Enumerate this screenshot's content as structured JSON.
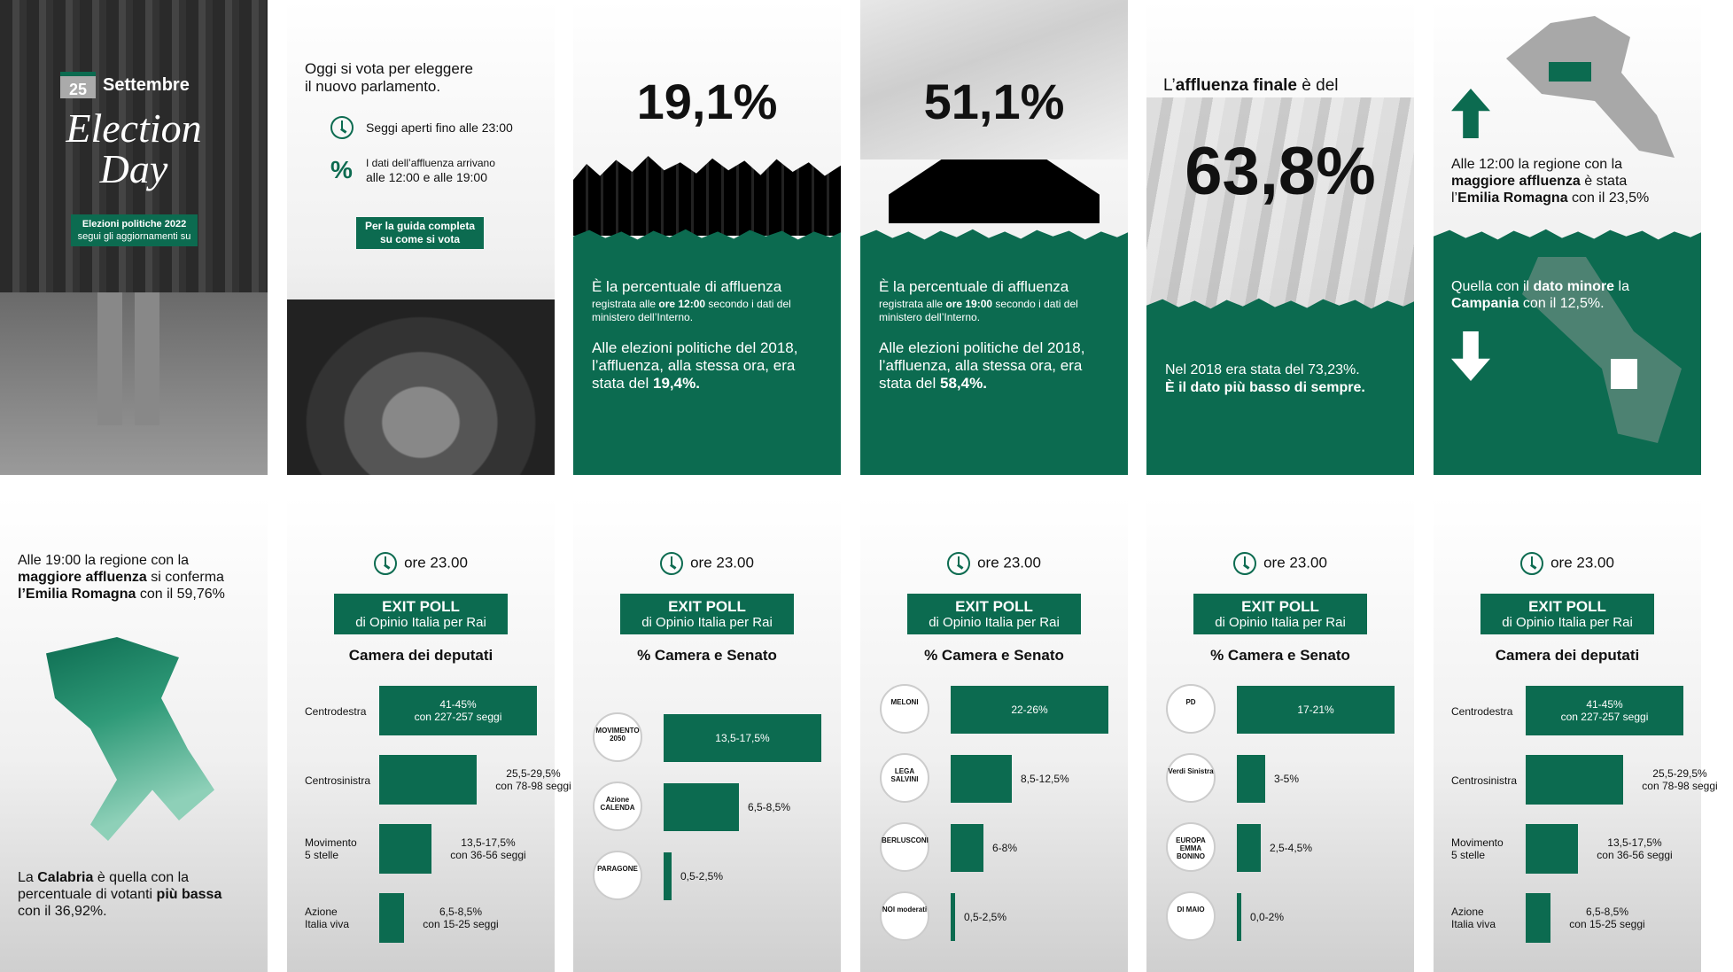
{
  "colors": {
    "accent": "#0c6b50",
    "background": "#ffffff",
    "text": "#111111"
  },
  "s1": {
    "day": "25",
    "month": "Settembre",
    "title1": "Election",
    "title2": "Day",
    "box1": "Elezioni politiche 2022",
    "box2": "segui gli aggiornamenti su",
    "icon": "calendar-icon"
  },
  "s2": {
    "line1": "Oggi si vota per eleggere",
    "line2": "il nuovo parlamento.",
    "item1": "Seggi aperti fino alle 23:00",
    "pct": "%",
    "item2a": "I dati dell’affluenza arrivano",
    "item2b": "alle 12:00 e alle 19:00",
    "btn1": "Per la guida completa",
    "btn2": "su come si vota"
  },
  "s3": {
    "value": "19,1%",
    "p1": "È la percentuale di affluenza",
    "p2a": "registrata alle ",
    "p2b": "ore 12:00",
    "p2c": " secondo i dati del",
    "p2d": "ministero dell’Interno.",
    "p3a": "Alle elezioni politiche del 2018,",
    "p3b": "l’affluenza, alla stessa ora, era",
    "p3c": "stata del ",
    "p3d": "19,4%."
  },
  "s4": {
    "value": "51,1%",
    "p1": "È la percentuale di affluenza",
    "p2a": "registrata alle ",
    "p2b": "ore 19:00",
    "p2c": " secondo i dati del",
    "p2d": "ministero dell’Interno.",
    "p3a": "Alle elezioni politiche del 2018,",
    "p3b": "l’affluenza, alla stessa ora, era",
    "p3c": "stata del ",
    "p3d": "58,4%."
  },
  "s5": {
    "h1a": "L’",
    "h1b": "affluenza finale",
    "h1c": " è del",
    "value": "63,8%",
    "p1": "Nel 2018 era stata del 73,23%.",
    "p2": "È il dato più basso di sempre."
  },
  "s6": {
    "a1": "Alle 12:00 la regione con la",
    "a2": "maggiore affluenza",
    "a3": " è stata",
    "a4": "l’",
    "a5": "Emilia Romagna",
    "a6": " con il 23,5%",
    "b1": "Quella con il ",
    "b2": "dato minore",
    "b3": " la",
    "b4": "Campania",
    "b5": " con il 12,5%."
  },
  "s7": {
    "a1": "Alle 19:00 la regione con la",
    "a2": "maggiore affluenza",
    "a3": " si conferma",
    "a4": "l’Emilia Romagna",
    "a5": " con il 59,76%",
    "b1": "La ",
    "b2": "Calabria",
    "b3": " è quella con la",
    "b4": "percentuale di votanti ",
    "b5": "più bassa",
    "b6": "con il 36,92%."
  },
  "exit": {
    "ore": "ore 23.00",
    "t1": "EXIT POLL",
    "t2": "di Opinio Italia per Rai"
  },
  "s8": {
    "subtitle": "Camera dei deputati",
    "rows": [
      {
        "label1": "Centrodestra",
        "label2": "",
        "v1": "41-45%",
        "v2": "con 227-257 seggi",
        "frac": 1.0
      },
      {
        "label1": "Centrosinistra",
        "label2": "",
        "v1": "25,5-29,5%",
        "v2": "con 78-98 seggi",
        "frac": 0.62
      },
      {
        "label1": "Movimento",
        "label2": "5 stelle",
        "v1": "13,5-17,5%",
        "v2": "con 36-56 seggi",
        "frac": 0.33
      },
      {
        "label1": "Azione",
        "label2": "Italia viva",
        "v1": "6,5-8,5%",
        "v2": "con 15-25 seggi",
        "frac": 0.16
      }
    ]
  },
  "s9": {
    "subtitle": "% Camera e Senato",
    "rows": [
      {
        "logo": "MOVIMENTO 2050",
        "v": "13,5-17,5%",
        "frac": 1.0
      },
      {
        "logo": "Azione CALENDA",
        "v": "6,5-8,5%",
        "frac": 0.48
      },
      {
        "logo": "PARAGONE",
        "v": "0,5-2,5%",
        "frac": 0.05
      }
    ]
  },
  "s10": {
    "subtitle": "% Camera e Senato",
    "rows": [
      {
        "logo": "MELONI",
        "v": "22-26%",
        "frac": 1.0
      },
      {
        "logo": "LEGA SALVINI",
        "v": "8,5-12,5%",
        "frac": 0.39
      },
      {
        "logo": "BERLUSCONI",
        "v": "6-8%",
        "frac": 0.21
      },
      {
        "logo": "NOI moderati",
        "v": "0,5-2,5%",
        "frac": 0.03
      }
    ]
  },
  "s11": {
    "subtitle": "% Camera e Senato",
    "rows": [
      {
        "logo": "PD",
        "v": "17-21%",
        "frac": 1.0
      },
      {
        "logo": "Verdi Sinistra",
        "v": "3-5%",
        "frac": 0.18
      },
      {
        "logo": "EUROPA EMMA BONINO",
        "v": "2,5-4,5%",
        "frac": 0.15
      },
      {
        "logo": "DI MAIO",
        "v": "0,0-2%",
        "frac": 0.02
      }
    ]
  },
  "s12": {
    "subtitle": "Camera dei deputati",
    "rows": [
      {
        "label1": "Centrodestra",
        "label2": "",
        "v1": "41-45%",
        "v2": "con 227-257 seggi",
        "frac": 1.0
      },
      {
        "label1": "Centrosinistra",
        "label2": "",
        "v1": "25,5-29,5%",
        "v2": "con 78-98 seggi",
        "frac": 0.62
      },
      {
        "label1": "Movimento",
        "label2": "5 stelle",
        "v1": "13,5-17,5%",
        "v2": "con 36-56 seggi",
        "frac": 0.33
      },
      {
        "label1": "Azione",
        "label2": "Italia viva",
        "v1": "6,5-8,5%",
        "v2": "con 15-25 seggi",
        "frac": 0.16
      }
    ]
  }
}
